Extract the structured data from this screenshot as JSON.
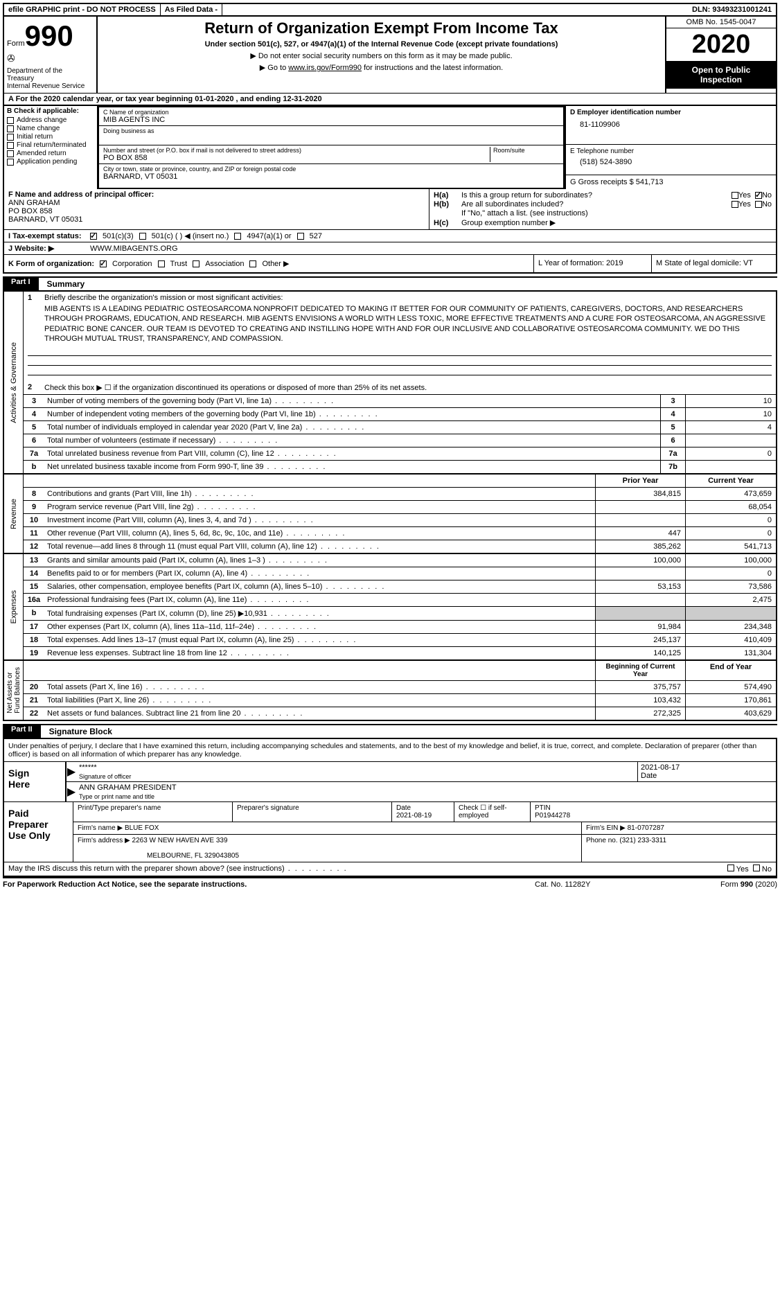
{
  "topbar": {
    "efile": "efile GRAPHIC print - DO NOT PROCESS",
    "asfiled": "As Filed Data -",
    "dln": "DLN: 93493231001241"
  },
  "header": {
    "form_prefix": "Form",
    "form_number": "990",
    "dept": "Department of the Treasury\nInternal Revenue Service",
    "title": "Return of Organization Exempt From Income Tax",
    "sub": "Under section 501(c), 527, or 4947(a)(1) of the Internal Revenue Code (except private foundations)",
    "note1": "▶ Do not enter social security numbers on this form as it may be made public.",
    "note2_prefix": "▶ Go to ",
    "note2_link": "www.irs.gov/Form990",
    "note2_suffix": " for instructions and the latest information.",
    "omb": "OMB No. 1545-0047",
    "year": "2020",
    "open": "Open to Public Inspection"
  },
  "row_a": "A   For the 2020 calendar year, or tax year beginning 01-01-2020   , and ending 12-31-2020",
  "col_b": {
    "hdr": "B Check if applicable:",
    "items": [
      "Address change",
      "Name change",
      "Initial return",
      "Final return/terminated",
      "Amended return",
      "Application pending"
    ]
  },
  "col_c": {
    "name_lbl": "C Name of organization",
    "name_val": "MIB AGENTS INC",
    "dba_lbl": "Doing business as",
    "addr_lbl": "Number and street (or P.O. box if mail is not delivered to street address)",
    "addr_val": "PO BOX 858",
    "room_lbl": "Room/suite",
    "city_lbl": "City or town, state or province, country, and ZIP or foreign postal code",
    "city_val": "BARNARD, VT  05031"
  },
  "col_d": {
    "d_lbl": "D Employer identification number",
    "d_val": "81-1109906",
    "e_lbl": "E Telephone number",
    "e_val": "(518) 524-3890",
    "g_lbl": "G Gross receipts $ 541,713"
  },
  "row_f": {
    "lbl": "F  Name and address of principal officer:",
    "name": "ANN GRAHAM",
    "addr1": "PO BOX 858",
    "addr2": "BARNARD, VT  05031"
  },
  "row_h": {
    "ha": "Is this a group return for subordinates?",
    "hb": "Are all subordinates included?",
    "hb_note": "If \"No,\" attach a list. (see instructions)",
    "hc": "Group exemption number ▶"
  },
  "row_i": {
    "lbl": "I   Tax-exempt status:",
    "opts": [
      "501(c)(3)",
      "501(c) (  ) ◀ (insert no.)",
      "4947(a)(1) or",
      "527"
    ]
  },
  "row_j": {
    "lbl": "J   Website: ▶",
    "val": "WWW.MIBAGENTS.ORG"
  },
  "row_k": {
    "k_lbl": "K Form of organization:",
    "k_opts": [
      "Corporation",
      "Trust",
      "Association",
      "Other ▶"
    ],
    "l": "L Year of formation: 2019",
    "m": "M State of legal domicile: VT"
  },
  "part1": {
    "tab": "Part I",
    "title": "Summary"
  },
  "summary": {
    "line1_lbl": "Briefly describe the organization's mission or most significant activities:",
    "mission": "MIB AGENTS IS A LEADING PEDIATRIC OSTEOSARCOMA NONPROFIT DEDICATED TO MAKING IT BETTER FOR OUR COMMUNITY OF PATIENTS, CAREGIVERS, DOCTORS, AND RESEARCHERS THROUGH PROGRAMS, EDUCATION, AND RESEARCH. MIB AGENTS ENVISIONS A WORLD WITH LESS TOXIC, MORE EFFECTIVE TREATMENTS AND A CURE FOR OSTEOSARCOMA, AN AGGRESSIVE PEDIATRIC BONE CANCER. OUR TEAM IS DEVOTED TO CREATING AND INSTILLING HOPE WITH AND FOR OUR INCLUSIVE AND COLLABORATIVE OSTEOSARCOMA COMMUNITY. WE DO THIS THROUGH MUTUAL TRUST, TRANSPARENCY, AND COMPASSION.",
    "line2": "Check this box ▶ ☐ if the organization discontinued its operations or disposed of more than 25% of its net assets.",
    "rows": [
      {
        "n": "3",
        "d": "Number of voting members of the governing body (Part VI, line 1a)",
        "c": "3",
        "v": "10"
      },
      {
        "n": "4",
        "d": "Number of independent voting members of the governing body (Part VI, line 1b)",
        "c": "4",
        "v": "10"
      },
      {
        "n": "5",
        "d": "Total number of individuals employed in calendar year 2020 (Part V, line 2a)",
        "c": "5",
        "v": "4"
      },
      {
        "n": "6",
        "d": "Total number of volunteers (estimate if necessary)",
        "c": "6",
        "v": ""
      },
      {
        "n": "7a",
        "d": "Total unrelated business revenue from Part VIII, column (C), line 12",
        "c": "7a",
        "v": "0"
      },
      {
        "n": "b",
        "d": "Net unrelated business taxable income from Form 990-T, line 39",
        "c": "7b",
        "v": ""
      }
    ]
  },
  "revenue": {
    "vtab": "Revenue",
    "hdr1": "Prior Year",
    "hdr2": "Current Year",
    "rows": [
      {
        "n": "8",
        "d": "Contributions and grants (Part VIII, line 1h)",
        "v1": "384,815",
        "v2": "473,659"
      },
      {
        "n": "9",
        "d": "Program service revenue (Part VIII, line 2g)",
        "v1": "",
        "v2": "68,054"
      },
      {
        "n": "10",
        "d": "Investment income (Part VIII, column (A), lines 3, 4, and 7d )",
        "v1": "",
        "v2": "0"
      },
      {
        "n": "11",
        "d": "Other revenue (Part VIII, column (A), lines 5, 6d, 8c, 9c, 10c, and 11e)",
        "v1": "447",
        "v2": "0"
      },
      {
        "n": "12",
        "d": "Total revenue—add lines 8 through 11 (must equal Part VIII, column (A), line 12)",
        "v1": "385,262",
        "v2": "541,713"
      }
    ]
  },
  "expenses": {
    "vtab": "Expenses",
    "rows": [
      {
        "n": "13",
        "d": "Grants and similar amounts paid (Part IX, column (A), lines 1–3 )",
        "v1": "100,000",
        "v2": "100,000"
      },
      {
        "n": "14",
        "d": "Benefits paid to or for members (Part IX, column (A), line 4)",
        "v1": "",
        "v2": "0"
      },
      {
        "n": "15",
        "d": "Salaries, other compensation, employee benefits (Part IX, column (A), lines 5–10)",
        "v1": "53,153",
        "v2": "73,586"
      },
      {
        "n": "16a",
        "d": "Professional fundraising fees (Part IX, column (A), line 11e)",
        "v1": "",
        "v2": "2,475"
      },
      {
        "n": "b",
        "d": "Total fundraising expenses (Part IX, column (D), line 25) ▶10,931",
        "v1": "shaded",
        "v2": "shaded"
      },
      {
        "n": "17",
        "d": "Other expenses (Part IX, column (A), lines 11a–11d, 11f–24e)",
        "v1": "91,984",
        "v2": "234,348"
      },
      {
        "n": "18",
        "d": "Total expenses. Add lines 13–17 (must equal Part IX, column (A), line 25)",
        "v1": "245,137",
        "v2": "410,409"
      },
      {
        "n": "19",
        "d": "Revenue less expenses. Subtract line 18 from line 12",
        "v1": "140,125",
        "v2": "131,304"
      }
    ]
  },
  "netassets": {
    "vtab": "Net Assets or\nFund Balances",
    "hdr1": "Beginning of Current Year",
    "hdr2": "End of Year",
    "rows": [
      {
        "n": "20",
        "d": "Total assets (Part X, line 16)",
        "v1": "375,757",
        "v2": "574,490"
      },
      {
        "n": "21",
        "d": "Total liabilities (Part X, line 26)",
        "v1": "103,432",
        "v2": "170,861"
      },
      {
        "n": "22",
        "d": "Net assets or fund balances. Subtract line 21 from line 20",
        "v1": "272,325",
        "v2": "403,629"
      }
    ]
  },
  "part2": {
    "tab": "Part II",
    "title": "Signature Block"
  },
  "sig": {
    "text": "Under penalties of perjury, I declare that I have examined this return, including accompanying schedules and statements, and to the best of my knowledge and belief, it is true, correct, and complete. Declaration of preparer (other than officer) is based on all information of which preparer has any knowledge.",
    "sign_here": "Sign Here",
    "stars": "******",
    "sig_of": "Signature of officer",
    "date": "2021-08-17",
    "date_lbl": "Date",
    "name": "ANN GRAHAM PRESIDENT",
    "name_lbl": "Type or print name and title"
  },
  "prep": {
    "left": "Paid Preparer Use Only",
    "h1": "Print/Type preparer's name",
    "h2": "Preparer's signature",
    "h3_lbl": "Date",
    "h3": "2021-08-19",
    "h4": "Check ☐ if self-employed",
    "h5_lbl": "PTIN",
    "h5": "P01944278",
    "firm_lbl": "Firm's name    ▶",
    "firm": "BLUE FOX",
    "ein_lbl": "Firm's EIN ▶",
    "ein": "81-0707287",
    "addr_lbl": "Firm's address ▶",
    "addr": "2263 W NEW HAVEN AVE 339",
    "addr2": "MELBOURNE, FL  329043805",
    "phone_lbl": "Phone no.",
    "phone": "(321) 233-3311"
  },
  "footer": {
    "q": "May the IRS discuss this return with the preparer shown above? (see instructions)",
    "notice": "For Paperwork Reduction Act Notice, see the separate instructions.",
    "cat": "Cat. No. 11282Y",
    "form": "Form 990 (2020)"
  },
  "vtabs": {
    "gov": "Activities & Governance"
  }
}
